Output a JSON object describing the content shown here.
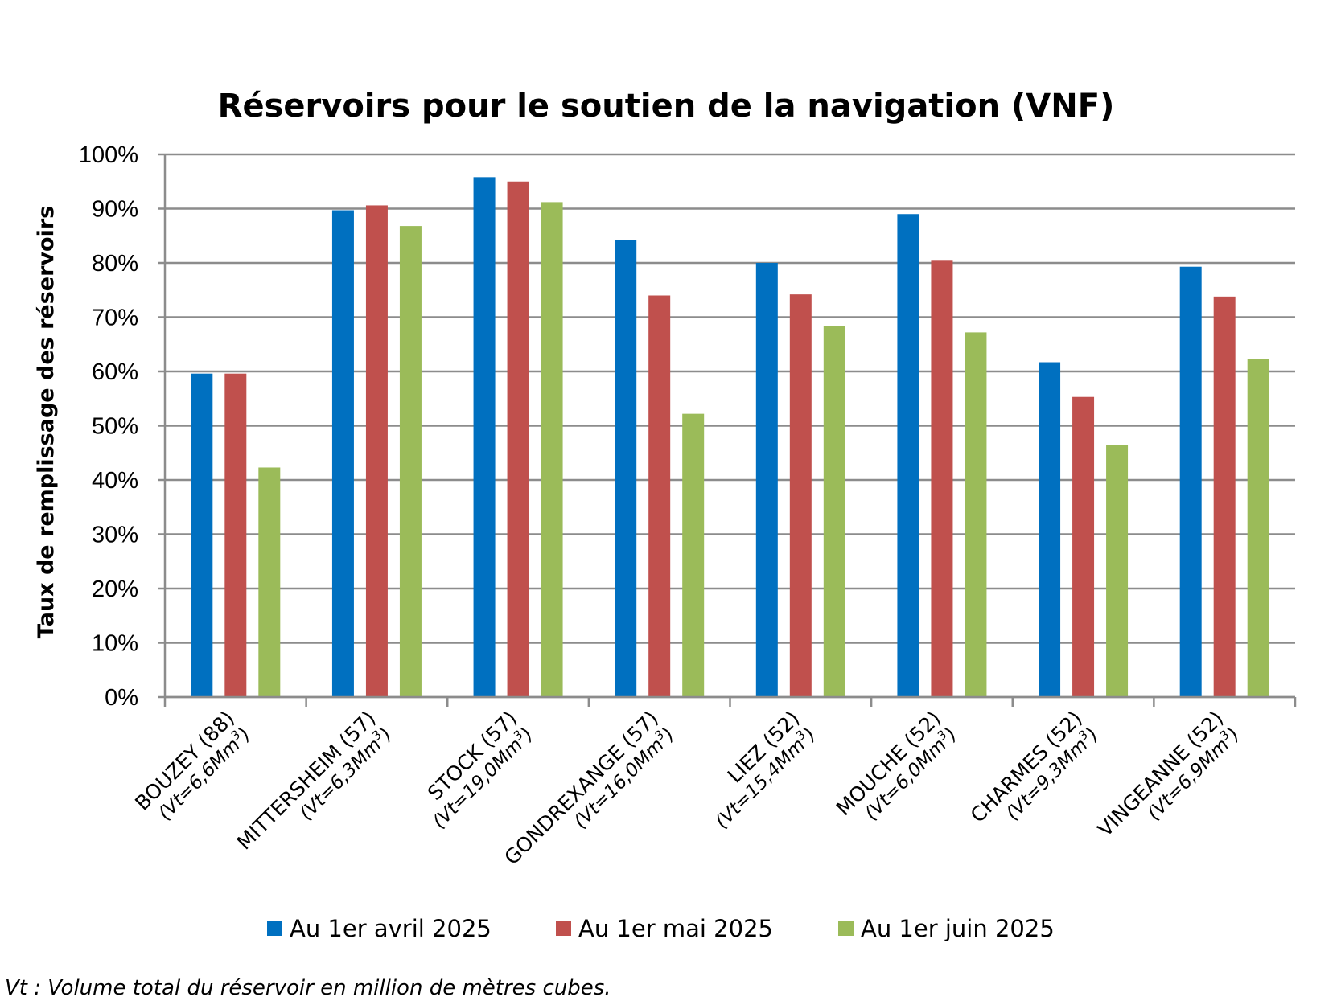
{
  "chart_data": {
    "type": "bar",
    "title": "Réservoirs pour le soutien de la navigation (VNF)",
    "ylabel": "Taux de remplissage des réservoirs",
    "xlabel": "",
    "ylim": [
      0,
      100
    ],
    "y_ticks": [
      "0%",
      "10%",
      "20%",
      "30%",
      "40%",
      "50%",
      "60%",
      "70%",
      "80%",
      "90%",
      "100%"
    ],
    "grid": true,
    "legend_position": "bottom",
    "categories": [
      {
        "name": "BOUZEY (88)",
        "volume": "(Vt=6,6Mm",
        "unit_exp": "3",
        "close": ")"
      },
      {
        "name": "MITTERSHEIM (57)",
        "volume": "(Vt=6,3Mm",
        "unit_exp": "3",
        "close": ")"
      },
      {
        "name": "STOCK (57)",
        "volume": "(Vt=19,0Mm",
        "unit_exp": "3",
        "close": ")"
      },
      {
        "name": "GONDREXANGE (57)",
        "volume": "(Vt=16,0Mm",
        "unit_exp": "3",
        "close": ")"
      },
      {
        "name": "LIEZ (52)",
        "volume": "(Vt=15,4Mm",
        "unit_exp": "3",
        "close": ")"
      },
      {
        "name": "MOUCHE (52)",
        "volume": "(Vt=6,0Mm",
        "unit_exp": "3",
        "close": ")"
      },
      {
        "name": "CHARMES (52)",
        "volume": "(Vt=9,3Mm",
        "unit_exp": "3",
        "close": ")"
      },
      {
        "name": "VINGEANNE (52)",
        "volume": "(Vt=6,9Mm",
        "unit_exp": "3",
        "close": ")"
      }
    ],
    "series": [
      {
        "name": "Au 1er avril 2025",
        "color": "#0070C0",
        "values": [
          59.6,
          89.7,
          95.8,
          84.2,
          80.0,
          89.0,
          61.7,
          79.3
        ]
      },
      {
        "name": "Au 1er mai 2025",
        "color": "#C0504D",
        "values": [
          59.6,
          90.6,
          95.0,
          74.0,
          74.2,
          80.4,
          55.3,
          73.8
        ]
      },
      {
        "name": "Au 1er juin 2025",
        "color": "#9BBB59",
        "values": [
          42.3,
          86.8,
          91.2,
          52.2,
          68.4,
          67.2,
          46.4,
          62.3
        ]
      }
    ]
  },
  "footnote": "Vt : Volume total du réservoir en million de mètres cubes."
}
